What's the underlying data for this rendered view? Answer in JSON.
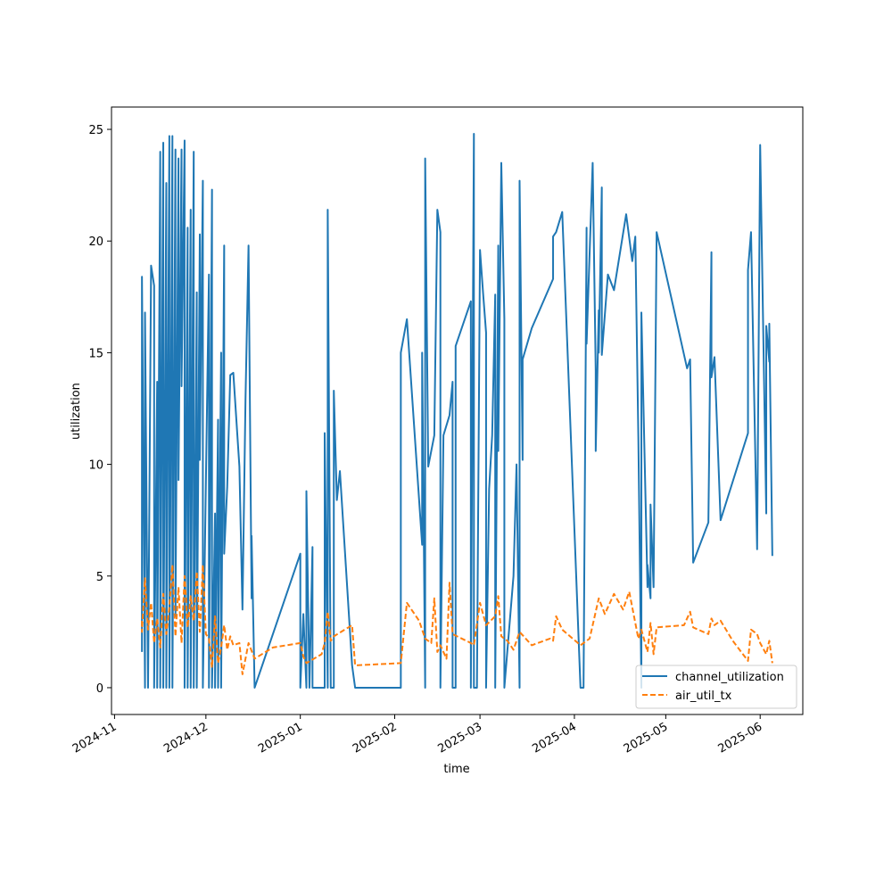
{
  "chart_data": {
    "type": "line",
    "title": "",
    "xlabel": "time",
    "ylabel": "utilization",
    "x_type": "date",
    "xlim": [
      "2024-10-31",
      "2025-06-15"
    ],
    "ylim": [
      -1.2,
      26
    ],
    "x_tick_labels": [
      "2024-11",
      "2024-12",
      "2025-01",
      "2025-02",
      "2025-03",
      "2025-04",
      "2025-05",
      "2025-06"
    ],
    "x_ticks": [
      "2024-11-01",
      "2024-12-01",
      "2025-01-01",
      "2025-02-01",
      "2025-03-01",
      "2025-04-01",
      "2025-05-01",
      "2025-06-01"
    ],
    "y_ticks": [
      0,
      5,
      10,
      15,
      20,
      25
    ],
    "y_tick_labels": [
      "0",
      "5",
      "10",
      "15",
      "20",
      "25"
    ],
    "grid": false,
    "legend": {
      "position": "lower-right",
      "entries": [
        "channel_utilization",
        "air_util_tx"
      ]
    },
    "series": [
      {
        "name": "channel_utilization",
        "color": "#1f77b4",
        "style": "solid",
        "points": [
          [
            "2024-11-10",
            1.6
          ],
          [
            "2024-11-10",
            18.4
          ],
          [
            "2024-11-11",
            0
          ],
          [
            "2024-11-11",
            16.8
          ],
          [
            "2024-11-12",
            0
          ],
          [
            "2024-11-13",
            18.9
          ],
          [
            "2024-11-14",
            18.0
          ],
          [
            "2024-11-14",
            0
          ],
          [
            "2024-11-15",
            13.7
          ],
          [
            "2024-11-15",
            0
          ],
          [
            "2024-11-16",
            24.0
          ],
          [
            "2024-11-16",
            0
          ],
          [
            "2024-11-17",
            24.4
          ],
          [
            "2024-11-17",
            0
          ],
          [
            "2024-11-18",
            22.6
          ],
          [
            "2024-11-18",
            0
          ],
          [
            "2024-11-19",
            24.7
          ],
          [
            "2024-11-19",
            0
          ],
          [
            "2024-11-20",
            24.7
          ],
          [
            "2024-11-20",
            0
          ],
          [
            "2024-11-21",
            24.1
          ],
          [
            "2024-11-21",
            3.2
          ],
          [
            "2024-11-22",
            23.7
          ],
          [
            "2024-11-22",
            9.3
          ],
          [
            "2024-11-23",
            24.1
          ],
          [
            "2024-11-23",
            13.5
          ],
          [
            "2024-11-24",
            24.5
          ],
          [
            "2024-11-24",
            0
          ],
          [
            "2024-11-25",
            20.6
          ],
          [
            "2024-11-25",
            0
          ],
          [
            "2024-11-26",
            21.4
          ],
          [
            "2024-11-26",
            0
          ],
          [
            "2024-11-27",
            24.0
          ],
          [
            "2024-11-27",
            0
          ],
          [
            "2024-11-28",
            17.7
          ],
          [
            "2024-11-28",
            0
          ],
          [
            "2024-11-29",
            20.3
          ],
          [
            "2024-11-29",
            10.2
          ],
          [
            "2024-11-30",
            22.7
          ],
          [
            "2024-11-30",
            0
          ],
          [
            "2024-12-02",
            18.5
          ],
          [
            "2024-12-02",
            0
          ],
          [
            "2024-12-03",
            22.3
          ],
          [
            "2024-12-03",
            0
          ],
          [
            "2024-12-04",
            7.8
          ],
          [
            "2024-12-04",
            0
          ],
          [
            "2024-12-05",
            12.0
          ],
          [
            "2024-12-05",
            0
          ],
          [
            "2024-12-06",
            15.0
          ],
          [
            "2024-12-06",
            0
          ],
          [
            "2024-12-07",
            19.8
          ],
          [
            "2024-12-07",
            6.0
          ],
          [
            "2024-12-08",
            9.0
          ],
          [
            "2024-12-09",
            14.0
          ],
          [
            "2024-12-10",
            14.1
          ],
          [
            "2024-12-12",
            9.9
          ],
          [
            "2024-12-13",
            3.5
          ],
          [
            "2024-12-14",
            12.9
          ],
          [
            "2024-12-15",
            19.8
          ],
          [
            "2024-12-16",
            4.0
          ],
          [
            "2024-12-16",
            6.8
          ],
          [
            "2024-12-17",
            0
          ],
          [
            "2025-01-01",
            6.0
          ],
          [
            "2025-01-01",
            0
          ],
          [
            "2025-01-02",
            3.3
          ],
          [
            "2025-01-03",
            0
          ],
          [
            "2025-01-03",
            8.8
          ],
          [
            "2025-01-04",
            0
          ],
          [
            "2025-01-05",
            6.3
          ],
          [
            "2025-01-05",
            0
          ],
          [
            "2025-01-09",
            0
          ],
          [
            "2025-01-09",
            11.4
          ],
          [
            "2025-01-10",
            0
          ],
          [
            "2025-01-10",
            21.4
          ],
          [
            "2025-01-11",
            0
          ],
          [
            "2025-01-12",
            0
          ],
          [
            "2025-01-12",
            13.3
          ],
          [
            "2025-01-13",
            8.4
          ],
          [
            "2025-01-14",
            9.7
          ],
          [
            "2025-01-18",
            1.0
          ],
          [
            "2025-01-19",
            0
          ],
          [
            "2025-02-03",
            0
          ],
          [
            "2025-02-03",
            15.0
          ],
          [
            "2025-02-05",
            16.5
          ],
          [
            "2025-02-10",
            6.4
          ],
          [
            "2025-02-10",
            15.0
          ],
          [
            "2025-02-11",
            0
          ],
          [
            "2025-02-11",
            23.7
          ],
          [
            "2025-02-12",
            9.9
          ],
          [
            "2025-02-14",
            11.3
          ],
          [
            "2025-02-15",
            21.4
          ],
          [
            "2025-02-16",
            20.4
          ],
          [
            "2025-02-16",
            0
          ],
          [
            "2025-02-17",
            11.3
          ],
          [
            "2025-02-19",
            12.2
          ],
          [
            "2025-02-20",
            13.7
          ],
          [
            "2025-02-20",
            0
          ],
          [
            "2025-02-21",
            0
          ],
          [
            "2025-02-21",
            15.3
          ],
          [
            "2025-02-26",
            17.3
          ],
          [
            "2025-02-26",
            0
          ],
          [
            "2025-02-27",
            24.8
          ],
          [
            "2025-02-27",
            0
          ],
          [
            "2025-02-28",
            0
          ],
          [
            "2025-03-01",
            19.6
          ],
          [
            "2025-03-02",
            17.7
          ],
          [
            "2025-03-03",
            15.9
          ],
          [
            "2025-03-03",
            0
          ],
          [
            "2025-03-04",
            8.9
          ],
          [
            "2025-03-05",
            11.3
          ],
          [
            "2025-03-06",
            17.6
          ],
          [
            "2025-03-06",
            0
          ],
          [
            "2025-03-07",
            19.8
          ],
          [
            "2025-03-07",
            10.6
          ],
          [
            "2025-03-08",
            23.5
          ],
          [
            "2025-03-09",
            16.5
          ],
          [
            "2025-03-09",
            0
          ],
          [
            "2025-03-12",
            5.0
          ],
          [
            "2025-03-13",
            10.0
          ],
          [
            "2025-03-14",
            0
          ],
          [
            "2025-03-14",
            22.7
          ],
          [
            "2025-03-15",
            10.2
          ],
          [
            "2025-03-15",
            14.7
          ],
          [
            "2025-03-18",
            16.1
          ],
          [
            "2025-03-25",
            18.3
          ],
          [
            "2025-03-25",
            20.2
          ],
          [
            "2025-03-26",
            20.4
          ],
          [
            "2025-03-28",
            21.3
          ],
          [
            "2025-04-03",
            0
          ],
          [
            "2025-04-04",
            0
          ],
          [
            "2025-04-05",
            20.6
          ],
          [
            "2025-04-05",
            15.4
          ],
          [
            "2025-04-07",
            23.5
          ],
          [
            "2025-04-08",
            14.2
          ],
          [
            "2025-04-08",
            10.6
          ],
          [
            "2025-04-09",
            16.9
          ],
          [
            "2025-04-09",
            15.0
          ],
          [
            "2025-04-10",
            22.4
          ],
          [
            "2025-04-10",
            14.9
          ],
          [
            "2025-04-12",
            18.5
          ],
          [
            "2025-04-14",
            17.8
          ],
          [
            "2025-04-18",
            21.2
          ],
          [
            "2025-04-20",
            19.1
          ],
          [
            "2025-04-21",
            20.2
          ],
          [
            "2025-04-22",
            11.2
          ],
          [
            "2025-04-23",
            0
          ],
          [
            "2025-04-23",
            16.8
          ],
          [
            "2025-04-25",
            4.5
          ],
          [
            "2025-04-25",
            5.5
          ],
          [
            "2025-04-26",
            4.0
          ],
          [
            "2025-04-26",
            8.2
          ],
          [
            "2025-04-27",
            4.5
          ],
          [
            "2025-04-28",
            20.4
          ],
          [
            "2025-05-08",
            14.3
          ],
          [
            "2025-05-09",
            14.7
          ],
          [
            "2025-05-10",
            5.6
          ],
          [
            "2025-05-15",
            7.4
          ],
          [
            "2025-05-16",
            19.5
          ],
          [
            "2025-05-16",
            13.9
          ],
          [
            "2025-05-17",
            14.8
          ],
          [
            "2025-05-19",
            7.5
          ],
          [
            "2025-05-28",
            11.4
          ],
          [
            "2025-05-28",
            18.7
          ],
          [
            "2025-05-29",
            20.4
          ],
          [
            "2025-05-31",
            6.2
          ],
          [
            "2025-06-01",
            24.3
          ],
          [
            "2025-06-03",
            7.8
          ],
          [
            "2025-06-03",
            16.2
          ],
          [
            "2025-06-04",
            14.6
          ],
          [
            "2025-06-04",
            16.3
          ],
          [
            "2025-06-05",
            5.9
          ]
        ]
      },
      {
        "name": "air_util_tx",
        "color": "#ff7f0e",
        "style": "dashed",
        "points": [
          [
            "2024-11-10",
            3.0
          ],
          [
            "2024-11-10",
            2.5
          ],
          [
            "2024-11-11",
            4.9
          ],
          [
            "2024-11-12",
            2.6
          ],
          [
            "2024-11-13",
            3.8
          ],
          [
            "2024-11-14",
            2.0
          ],
          [
            "2024-11-15",
            3.1
          ],
          [
            "2024-11-16",
            1.8
          ],
          [
            "2024-11-17",
            4.2
          ],
          [
            "2024-11-18",
            2.4
          ],
          [
            "2024-11-19",
            3.6
          ],
          [
            "2024-11-20",
            5.5
          ],
          [
            "2024-11-21",
            2.3
          ],
          [
            "2024-11-22",
            4.5
          ],
          [
            "2024-11-23",
            2.0
          ],
          [
            "2024-11-24",
            5.0
          ],
          [
            "2024-11-25",
            2.7
          ],
          [
            "2024-11-26",
            4.1
          ],
          [
            "2024-11-27",
            3.0
          ],
          [
            "2024-11-28",
            5.2
          ],
          [
            "2024-11-29",
            2.5
          ],
          [
            "2024-11-30",
            5.5
          ],
          [
            "2024-12-01",
            2.4
          ],
          [
            "2024-12-02",
            2.2
          ],
          [
            "2024-12-03",
            0.9
          ],
          [
            "2024-12-04",
            3.2
          ],
          [
            "2024-12-05",
            1.1
          ],
          [
            "2024-12-06",
            1.8
          ],
          [
            "2024-12-07",
            2.8
          ],
          [
            "2024-12-08",
            1.7
          ],
          [
            "2024-12-09",
            2.3
          ],
          [
            "2024-12-10",
            1.9
          ],
          [
            "2024-12-12",
            2.0
          ],
          [
            "2024-12-13",
            0.6
          ],
          [
            "2024-12-15",
            2.0
          ],
          [
            "2024-12-17",
            1.3
          ],
          [
            "2024-12-23",
            1.8
          ],
          [
            "2025-01-01",
            2.0
          ],
          [
            "2025-01-02",
            1.4
          ],
          [
            "2025-01-03",
            1.1
          ],
          [
            "2025-01-08",
            1.5
          ],
          [
            "2025-01-09",
            2.0
          ],
          [
            "2025-01-10",
            3.4
          ],
          [
            "2025-01-11",
            2.1
          ],
          [
            "2025-01-12",
            2.3
          ],
          [
            "2025-01-18",
            2.8
          ],
          [
            "2025-01-19",
            1.0
          ],
          [
            "2025-02-03",
            1.1
          ],
          [
            "2025-02-05",
            3.8
          ],
          [
            "2025-02-09",
            3.0
          ],
          [
            "2025-02-11",
            2.2
          ],
          [
            "2025-02-13",
            2.0
          ],
          [
            "2025-02-14",
            4.0
          ],
          [
            "2025-02-15",
            1.6
          ],
          [
            "2025-02-16",
            1.9
          ],
          [
            "2025-02-18",
            1.3
          ],
          [
            "2025-02-19",
            4.7
          ],
          [
            "2025-02-20",
            2.4
          ],
          [
            "2025-02-26",
            2.0
          ],
          [
            "2025-02-27",
            1.9
          ],
          [
            "2025-03-01",
            3.8
          ],
          [
            "2025-03-03",
            2.8
          ],
          [
            "2025-03-06",
            3.2
          ],
          [
            "2025-03-07",
            4.1
          ],
          [
            "2025-03-08",
            2.3
          ],
          [
            "2025-03-10",
            2.1
          ],
          [
            "2025-03-12",
            1.7
          ],
          [
            "2025-03-14",
            2.5
          ],
          [
            "2025-03-18",
            1.9
          ],
          [
            "2025-03-24",
            2.2
          ],
          [
            "2025-03-25",
            2.1
          ],
          [
            "2025-03-26",
            3.2
          ],
          [
            "2025-03-28",
            2.6
          ],
          [
            "2025-04-03",
            1.9
          ],
          [
            "2025-04-06",
            2.2
          ],
          [
            "2025-04-09",
            4.0
          ],
          [
            "2025-04-11",
            3.3
          ],
          [
            "2025-04-14",
            4.2
          ],
          [
            "2025-04-17",
            3.5
          ],
          [
            "2025-04-19",
            4.3
          ],
          [
            "2025-04-22",
            2.2
          ],
          [
            "2025-04-23",
            2.6
          ],
          [
            "2025-04-25",
            1.6
          ],
          [
            "2025-04-26",
            2.9
          ],
          [
            "2025-04-27",
            1.5
          ],
          [
            "2025-04-28",
            2.7
          ],
          [
            "2025-05-07",
            2.8
          ],
          [
            "2025-05-09",
            3.4
          ],
          [
            "2025-05-10",
            2.7
          ],
          [
            "2025-05-15",
            2.4
          ],
          [
            "2025-05-16",
            3.1
          ],
          [
            "2025-05-17",
            2.8
          ],
          [
            "2025-05-19",
            3.0
          ],
          [
            "2025-05-23",
            2.1
          ],
          [
            "2025-05-28",
            1.2
          ],
          [
            "2025-05-29",
            2.6
          ],
          [
            "2025-05-31",
            2.4
          ],
          [
            "2025-06-01",
            2.0
          ],
          [
            "2025-06-03",
            1.5
          ],
          [
            "2025-06-04",
            2.1
          ],
          [
            "2025-06-05",
            1.1
          ]
        ]
      }
    ]
  }
}
